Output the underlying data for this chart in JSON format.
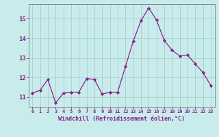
{
  "x": [
    0,
    1,
    2,
    3,
    4,
    5,
    6,
    7,
    8,
    9,
    10,
    11,
    12,
    13,
    14,
    15,
    16,
    17,
    18,
    19,
    20,
    21,
    22,
    23
  ],
  "y": [
    11.2,
    11.35,
    11.9,
    10.7,
    11.2,
    11.25,
    11.25,
    11.95,
    11.9,
    11.15,
    11.25,
    11.25,
    12.55,
    13.85,
    14.9,
    15.55,
    14.95,
    13.9,
    13.4,
    13.1,
    13.15,
    12.7,
    12.25,
    11.6
  ],
  "line_color": "#882288",
  "marker": "D",
  "marker_size": 2.2,
  "bg_color": "#c8ecec",
  "grid_color": "#aacccc",
  "xlabel": "Windchill (Refroidissement éolien,°C)",
  "xlabel_color": "#882288",
  "tick_color": "#882288",
  "ylim": [
    10.5,
    15.75
  ],
  "yticks": [
    11,
    12,
    13,
    14,
    15
  ],
  "xlim": [
    -0.5,
    23.5
  ]
}
